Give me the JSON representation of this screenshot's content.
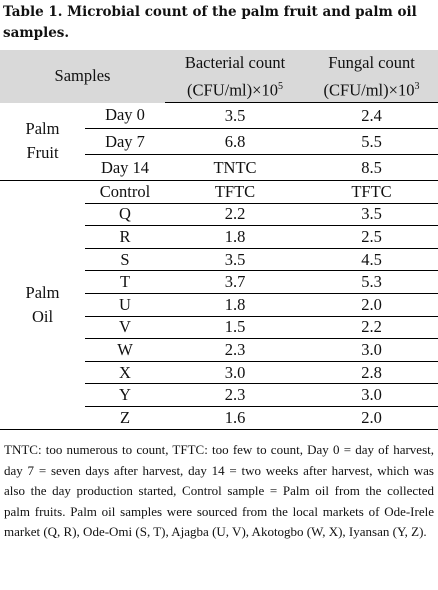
{
  "title": "Table 1. Microbial count of the palm fruit and palm oil samples.",
  "table": {
    "header": {
      "samples": "Samples",
      "bacterial": {
        "name": "Bacterial count",
        "unit": "(CFU/ml)×10",
        "exponent": "5"
      },
      "fungal": {
        "name": "Fungal count",
        "unit": "(CFU/ml)×10",
        "exponent": "3"
      }
    },
    "groups": [
      {
        "label": [
          "Palm",
          "Fruit"
        ],
        "rows": [
          [
            "Day 0",
            "3.5",
            "2.4"
          ],
          [
            "Day 7",
            "6.8",
            "5.5"
          ],
          [
            "Day 14",
            "TNTC",
            "8.5"
          ]
        ]
      },
      {
        "label": [
          "Palm",
          "Oil"
        ],
        "rows": [
          [
            "Control",
            "TFTC",
            "TFTC"
          ],
          [
            "Q",
            "2.2",
            "3.5"
          ],
          [
            "R",
            "1.8",
            "2.5"
          ],
          [
            "S",
            "3.5",
            "4.5"
          ],
          [
            "T",
            "3.7",
            "5.3"
          ],
          [
            "U",
            "1.8",
            "2.0"
          ],
          [
            "V",
            "1.5",
            "2.2"
          ],
          [
            "W",
            "2.3",
            "3.0"
          ],
          [
            "X",
            "3.0",
            "2.8"
          ],
          [
            "Y",
            "2.3",
            "3.0"
          ],
          [
            "Z",
            "1.6",
            "2.0"
          ]
        ]
      }
    ]
  },
  "notes": "TNTC: too numerous to count, TFTC: too few to count, Day 0 = day of harvest, day 7 = seven days after harvest, day 14 = two weeks after harvest, which was also the day production started, Control sample = Palm oil from the collected palm fruits. Palm oil samples were sourced from the local markets of Ode-Irele market (Q, R), Ode-Omi (S, T), Ajagba (U, V), Akotogbo (W, X), Iyansan (Y, Z)."
}
